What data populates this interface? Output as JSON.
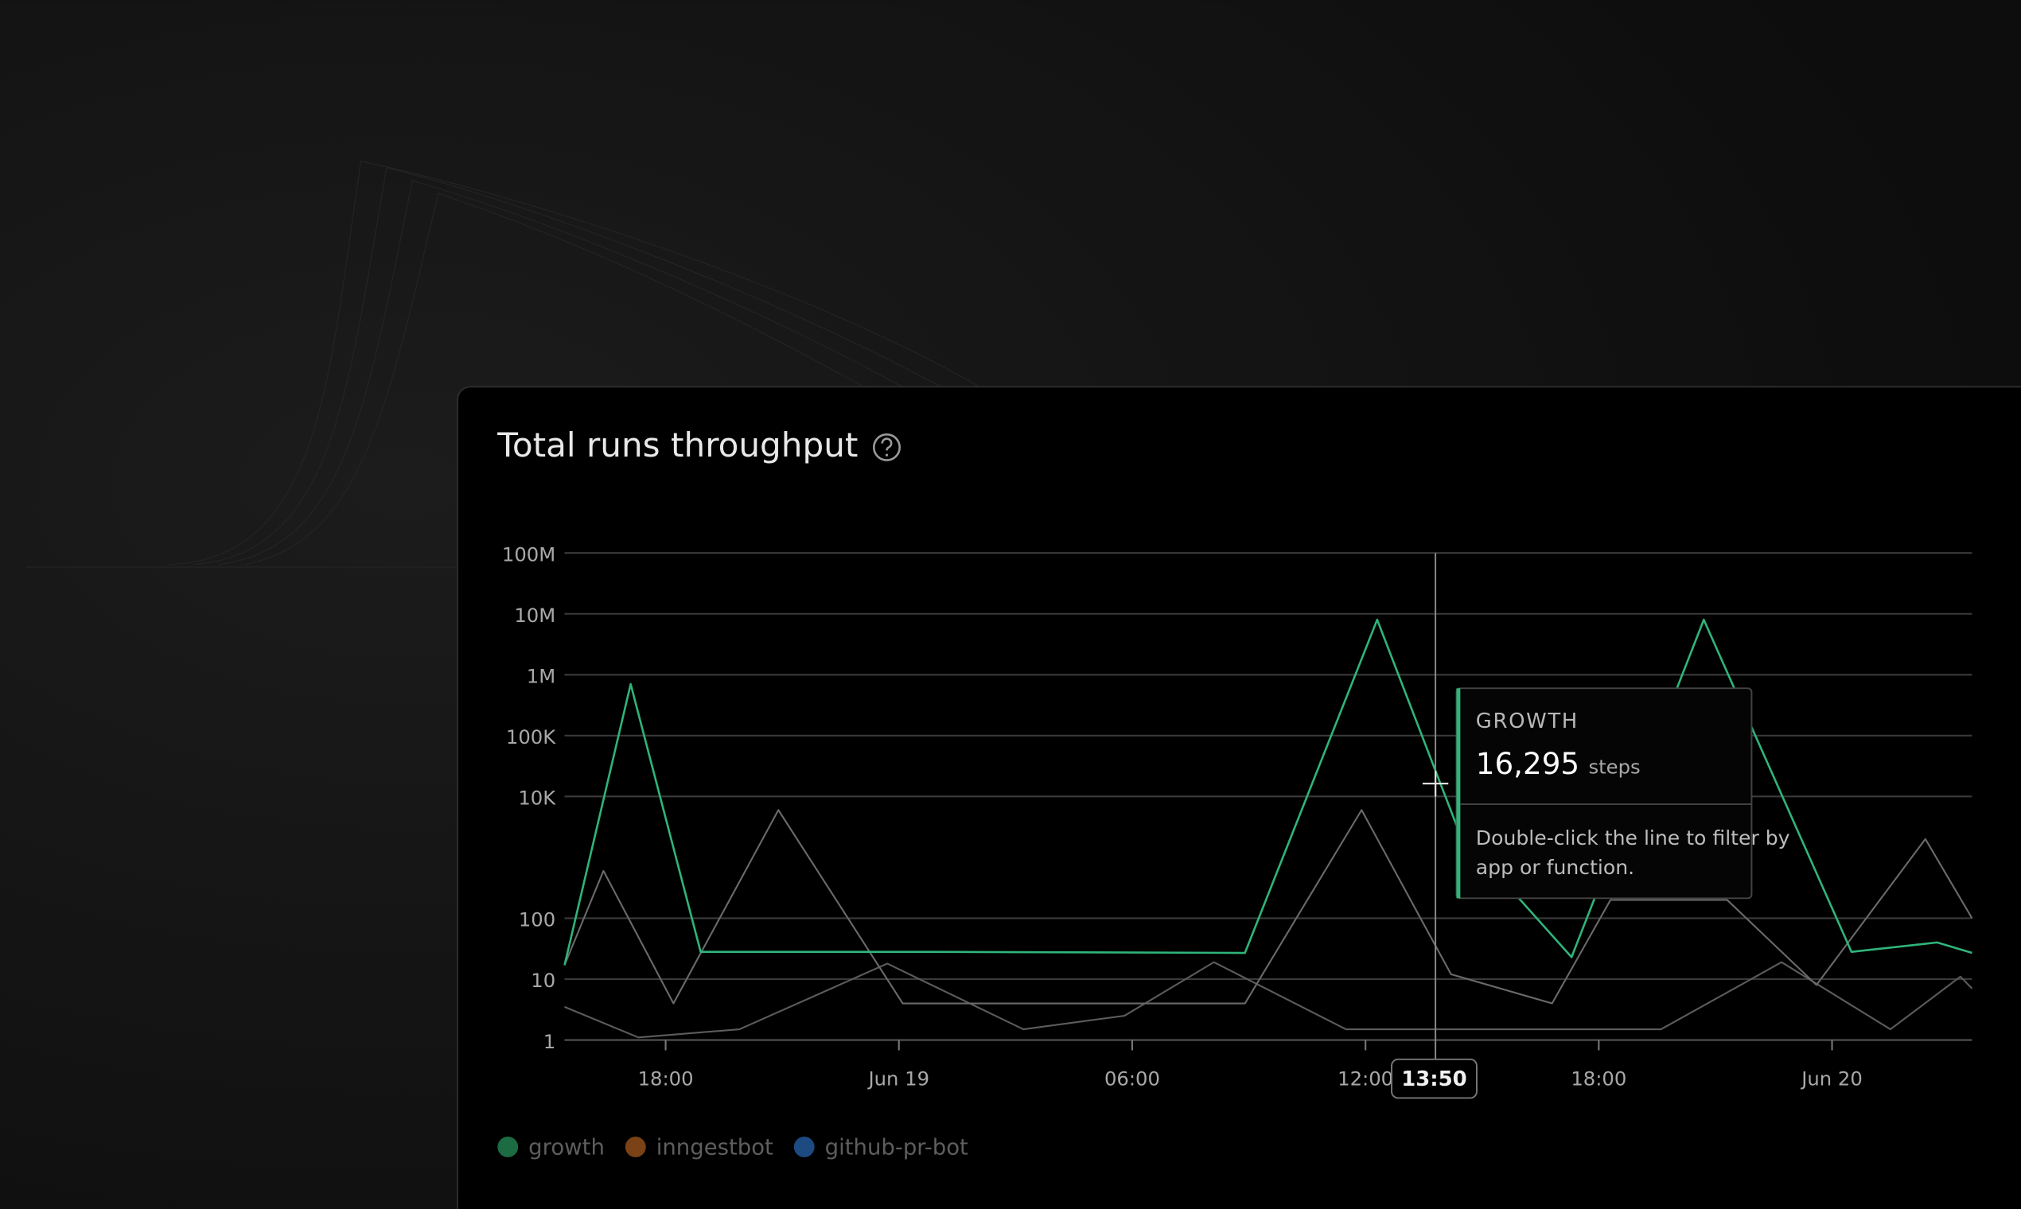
{
  "chart_data": {
    "type": "line",
    "title": "Total runs throughput",
    "log_scale": true,
    "grid": true,
    "ylim": [
      1,
      100000000
    ],
    "yticks": [
      1,
      10,
      100,
      {
        "value": 10000,
        "label": "10K"
      },
      {
        "value": 100000,
        "label": "100K"
      },
      {
        "value": 1000000,
        "label": "1M"
      },
      {
        "value": 10000000,
        "label": "10M"
      },
      {
        "value": 100000000,
        "label": "100M"
      }
    ],
    "xlim": [
      15.4,
      51.6
    ],
    "xticks": [
      {
        "value": 18,
        "label": "18:00"
      },
      {
        "value": 24,
        "label": "Jun 19"
      },
      {
        "value": 30,
        "label": "06:00"
      },
      {
        "value": 36,
        "label": "12:00"
      },
      {
        "value": 42,
        "label": "18:00"
      },
      {
        "value": 48,
        "label": "Jun 20"
      }
    ],
    "series": [
      {
        "name": "growth",
        "color": "#2fb57a",
        "legend_color": "#1d6b43",
        "x": [
          15.4,
          17.1,
          18.9,
          24.8,
          32.9,
          36.3,
          38.4,
          41.3,
          44.7,
          48.5,
          50.7,
          51.6
        ],
        "values": [
          17,
          700000,
          28,
          28,
          27,
          8000000,
          2700,
          23,
          8000000,
          28,
          40,
          27
        ]
      },
      {
        "name": "inngestbot",
        "color": "#6a6a6a",
        "legend_color": "#7a4216",
        "x": [
          15.4,
          16.4,
          18.2,
          20.9,
          24.1,
          32.9,
          35.9,
          38.2,
          40.8,
          42.3,
          45.3,
          47.6,
          50.4,
          51.6
        ],
        "values": [
          17,
          600,
          4,
          6000,
          4,
          4,
          6000,
          12,
          4,
          200,
          200,
          8,
          2000,
          100
        ]
      },
      {
        "name": "github-pr-bot",
        "color": "#5c5c5c",
        "legend_color": "#1d4a80",
        "x": [
          15.4,
          17.3,
          19.9,
          23.7,
          27.2,
          29.8,
          32.1,
          35.5,
          43.6,
          46.7,
          49.5,
          51.3,
          51.6
        ],
        "values": [
          3.5,
          1.1,
          1.5,
          18,
          1.5,
          2.5,
          19,
          1.5,
          1.5,
          19,
          1.5,
          11,
          7
        ]
      }
    ],
    "tooltip": {
      "series": "GROWTH",
      "value": 16295,
      "value_label": "16,295",
      "unit": "steps",
      "hint": "Double-click the line to filter by app or function.",
      "x": 37.8,
      "x_label": "13:50"
    }
  }
}
